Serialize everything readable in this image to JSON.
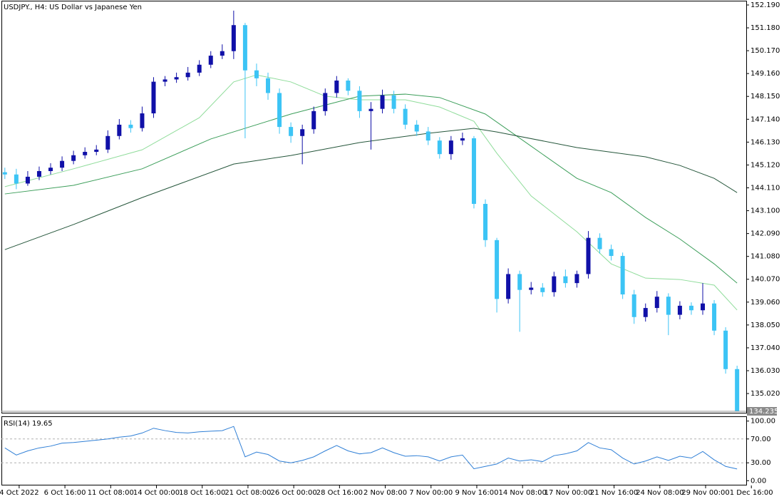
{
  "chart_data": [
    {
      "type": "candlestick",
      "title": "USDJPY., H4:  US Dollar vs Japanese Yen",
      "up_color": "#1010a8",
      "down_color": "#3cc4f5",
      "xlim": [
        -0.3,
        64.8
      ],
      "xticks": [
        {
          "value": 1.25,
          "label": "4 Oct 2022"
        },
        {
          "value": 5.25,
          "label": "6 Oct 16:00"
        },
        {
          "value": 9.25,
          "label": "11 Oct 08:00"
        },
        {
          "value": 13.25,
          "label": "14 Oct 00:00"
        },
        {
          "value": 17.25,
          "label": "18 Oct 16:00"
        },
        {
          "value": 21.25,
          "label": "21 Oct 08:00"
        },
        {
          "value": 25.25,
          "label": "26 Oct 00:00"
        },
        {
          "value": 29.25,
          "label": "28 Oct 16:00"
        },
        {
          "value": 33.25,
          "label": "2 Nov 08:00"
        },
        {
          "value": 37.25,
          "label": "7 Nov 00:00"
        },
        {
          "value": 41.25,
          "label": "9 Nov 16:00"
        },
        {
          "value": 45.25,
          "label": "14 Nov 08:00"
        },
        {
          "value": 49.25,
          "label": "17 Nov 00:00"
        },
        {
          "value": 53.25,
          "label": "21 Nov 16:00"
        },
        {
          "value": 57.25,
          "label": "24 Nov 08:00"
        },
        {
          "value": 61.25,
          "label": "29 Nov 00:00"
        },
        {
          "value": 65.25,
          "label": "1 Dec 16:00"
        }
      ],
      "ylim": [
        134.14,
        152.41
      ],
      "yticks": [
        {
          "value": 152.19,
          "label": "152.190"
        },
        {
          "value": 151.18,
          "label": "151.180"
        },
        {
          "value": 150.17,
          "label": "150.170"
        },
        {
          "value": 149.16,
          "label": "149.160"
        },
        {
          "value": 148.15,
          "label": "148.150"
        },
        {
          "value": 147.14,
          "label": "147.140"
        },
        {
          "value": 146.13,
          "label": "146.130"
        },
        {
          "value": 145.12,
          "label": "145.120"
        },
        {
          "value": 144.11,
          "label": "144.110"
        },
        {
          "value": 143.1,
          "label": "143.100"
        },
        {
          "value": 142.09,
          "label": "142.090"
        },
        {
          "value": 141.08,
          "label": "141.080"
        },
        {
          "value": 140.07,
          "label": "140.070"
        },
        {
          "value": 139.06,
          "label": "139.060"
        },
        {
          "value": 138.05,
          "label": "138.050"
        },
        {
          "value": 137.04,
          "label": "137.040"
        },
        {
          "value": 136.03,
          "label": "136.030"
        },
        {
          "value": 135.02,
          "label": "135.020"
        }
      ],
      "last_price": 134.235,
      "open": [
        144.8,
        144.7,
        144.3,
        144.6,
        144.85,
        145.0,
        145.3,
        145.55,
        145.7,
        145.8,
        146.4,
        146.9,
        146.75,
        147.4,
        148.8,
        148.9,
        149.0,
        149.2,
        149.55,
        149.95,
        150.15,
        151.3,
        149.3,
        148.95,
        148.3,
        146.8,
        146.4,
        146.7,
        147.5,
        148.3,
        148.85,
        148.4,
        147.5,
        147.6,
        148.2,
        147.6,
        146.9,
        146.6,
        146.2,
        145.6,
        146.2,
        146.3,
        143.4,
        141.8,
        139.2,
        140.3,
        139.6,
        139.7,
        139.5,
        140.2,
        139.9,
        140.3,
        141.9,
        141.4,
        141.1,
        139.4,
        138.4,
        138.8,
        139.3,
        138.5,
        138.9,
        138.7,
        139.0,
        137.8,
        136.1
      ],
      "high": [
        145.0,
        144.95,
        144.85,
        145.05,
        145.2,
        145.5,
        145.75,
        145.9,
        146.0,
        146.65,
        147.15,
        147.1,
        147.7,
        149.0,
        149.05,
        149.2,
        149.45,
        149.75,
        150.15,
        150.45,
        151.94,
        151.4,
        149.6,
        149.2,
        148.5,
        147.0,
        146.9,
        147.7,
        148.5,
        149.05,
        148.95,
        148.6,
        147.9,
        148.45,
        148.4,
        147.8,
        147.1,
        146.8,
        146.35,
        146.4,
        146.55,
        146.4,
        143.6,
        141.9,
        140.55,
        140.45,
        139.95,
        139.9,
        140.4,
        140.5,
        140.45,
        142.2,
        142.1,
        141.6,
        141.25,
        139.6,
        139.0,
        139.55,
        139.45,
        139.1,
        139.05,
        139.9,
        139.15,
        137.95,
        136.25
      ],
      "low": [
        144.5,
        144.05,
        144.2,
        144.45,
        144.7,
        144.85,
        145.15,
        145.4,
        145.55,
        145.65,
        146.25,
        146.55,
        146.6,
        147.2,
        148.6,
        148.75,
        148.85,
        149.05,
        149.4,
        149.8,
        149.8,
        146.3,
        148.6,
        148.0,
        146.5,
        146.1,
        145.15,
        146.5,
        147.3,
        148.1,
        148.2,
        147.2,
        145.8,
        147.4,
        147.4,
        146.7,
        146.4,
        146.0,
        145.4,
        145.35,
        146.0,
        143.2,
        141.5,
        138.6,
        139.0,
        137.75,
        139.4,
        139.3,
        139.3,
        139.7,
        139.7,
        140.1,
        141.2,
        140.9,
        139.2,
        138.1,
        138.2,
        138.6,
        137.6,
        138.3,
        138.5,
        138.5,
        137.6,
        135.9,
        134.235
      ],
      "close": [
        144.7,
        144.3,
        144.6,
        144.85,
        145.0,
        145.3,
        145.55,
        145.7,
        145.8,
        146.4,
        146.9,
        146.75,
        147.4,
        148.8,
        148.9,
        149.0,
        149.2,
        149.55,
        149.95,
        150.15,
        151.3,
        149.3,
        148.95,
        148.3,
        146.8,
        146.4,
        146.7,
        147.5,
        148.3,
        148.85,
        148.4,
        147.5,
        147.6,
        148.2,
        147.6,
        146.9,
        146.6,
        146.2,
        145.6,
        146.2,
        146.3,
        143.4,
        141.8,
        139.2,
        140.3,
        139.6,
        139.7,
        139.5,
        140.2,
        139.9,
        140.3,
        141.9,
        141.4,
        141.1,
        139.4,
        138.4,
        138.8,
        139.3,
        138.5,
        138.9,
        138.7,
        139.0,
        137.8,
        136.1,
        134.235
      ],
      "moving_averages": [
        {
          "color": "#8fdc9a",
          "x": [
            0,
            6,
            12,
            17,
            20,
            22,
            25,
            28,
            31,
            35,
            38,
            41,
            43,
            46,
            50,
            53,
            56,
            59,
            62,
            64
          ],
          "values": [
            144.16,
            144.95,
            145.79,
            147.21,
            148.79,
            149.1,
            148.79,
            148.16,
            148.0,
            148.0,
            147.68,
            147.05,
            145.64,
            143.75,
            142.17,
            140.75,
            140.12,
            140.06,
            139.81,
            138.71
          ]
        },
        {
          "color": "#3c9e5a",
          "x": [
            0,
            6,
            12,
            18,
            25,
            31,
            35,
            38,
            42,
            46,
            50,
            53,
            56,
            59,
            62,
            64
          ],
          "values": [
            143.84,
            144.22,
            144.95,
            146.27,
            147.37,
            148.16,
            148.25,
            148.1,
            147.37,
            145.95,
            144.53,
            143.9,
            142.8,
            141.85,
            140.75,
            139.9
          ]
        },
        {
          "color": "#24553a",
          "x": [
            0,
            6,
            12,
            20,
            25,
            31,
            37,
            41,
            43,
            50,
            56,
            59,
            62,
            64
          ],
          "values": [
            141.38,
            142.49,
            143.68,
            145.16,
            145.54,
            146.11,
            146.52,
            146.74,
            146.58,
            145.89,
            145.48,
            145.1,
            144.53,
            143.9
          ]
        }
      ]
    },
    {
      "type": "line",
      "title": "RSI(14) 19.65",
      "color": "#2f7fd6",
      "xlim": [
        -0.3,
        64.8
      ],
      "ylim": [
        -8,
        108
      ],
      "yticks": [
        {
          "value": 100,
          "label": "100.00"
        },
        {
          "value": 70,
          "label": "70.00"
        },
        {
          "value": 30,
          "label": "30.00"
        },
        {
          "value": 0,
          "label": "0.00"
        }
      ],
      "levels": [
        70,
        30
      ],
      "values": [
        55,
        43,
        50,
        55,
        58,
        63,
        64,
        66,
        68,
        70,
        73,
        75,
        80,
        88,
        84,
        81,
        80,
        82,
        83,
        84,
        91,
        40,
        48,
        44,
        33,
        30,
        34,
        40,
        50,
        59,
        50,
        45,
        47,
        55,
        47,
        41,
        42,
        40,
        33,
        40,
        43,
        20,
        24,
        28,
        38,
        33,
        35,
        32,
        42,
        45,
        50,
        64,
        55,
        52,
        38,
        28,
        33,
        40,
        34,
        41,
        38,
        49,
        35,
        24,
        19.65
      ]
    }
  ]
}
